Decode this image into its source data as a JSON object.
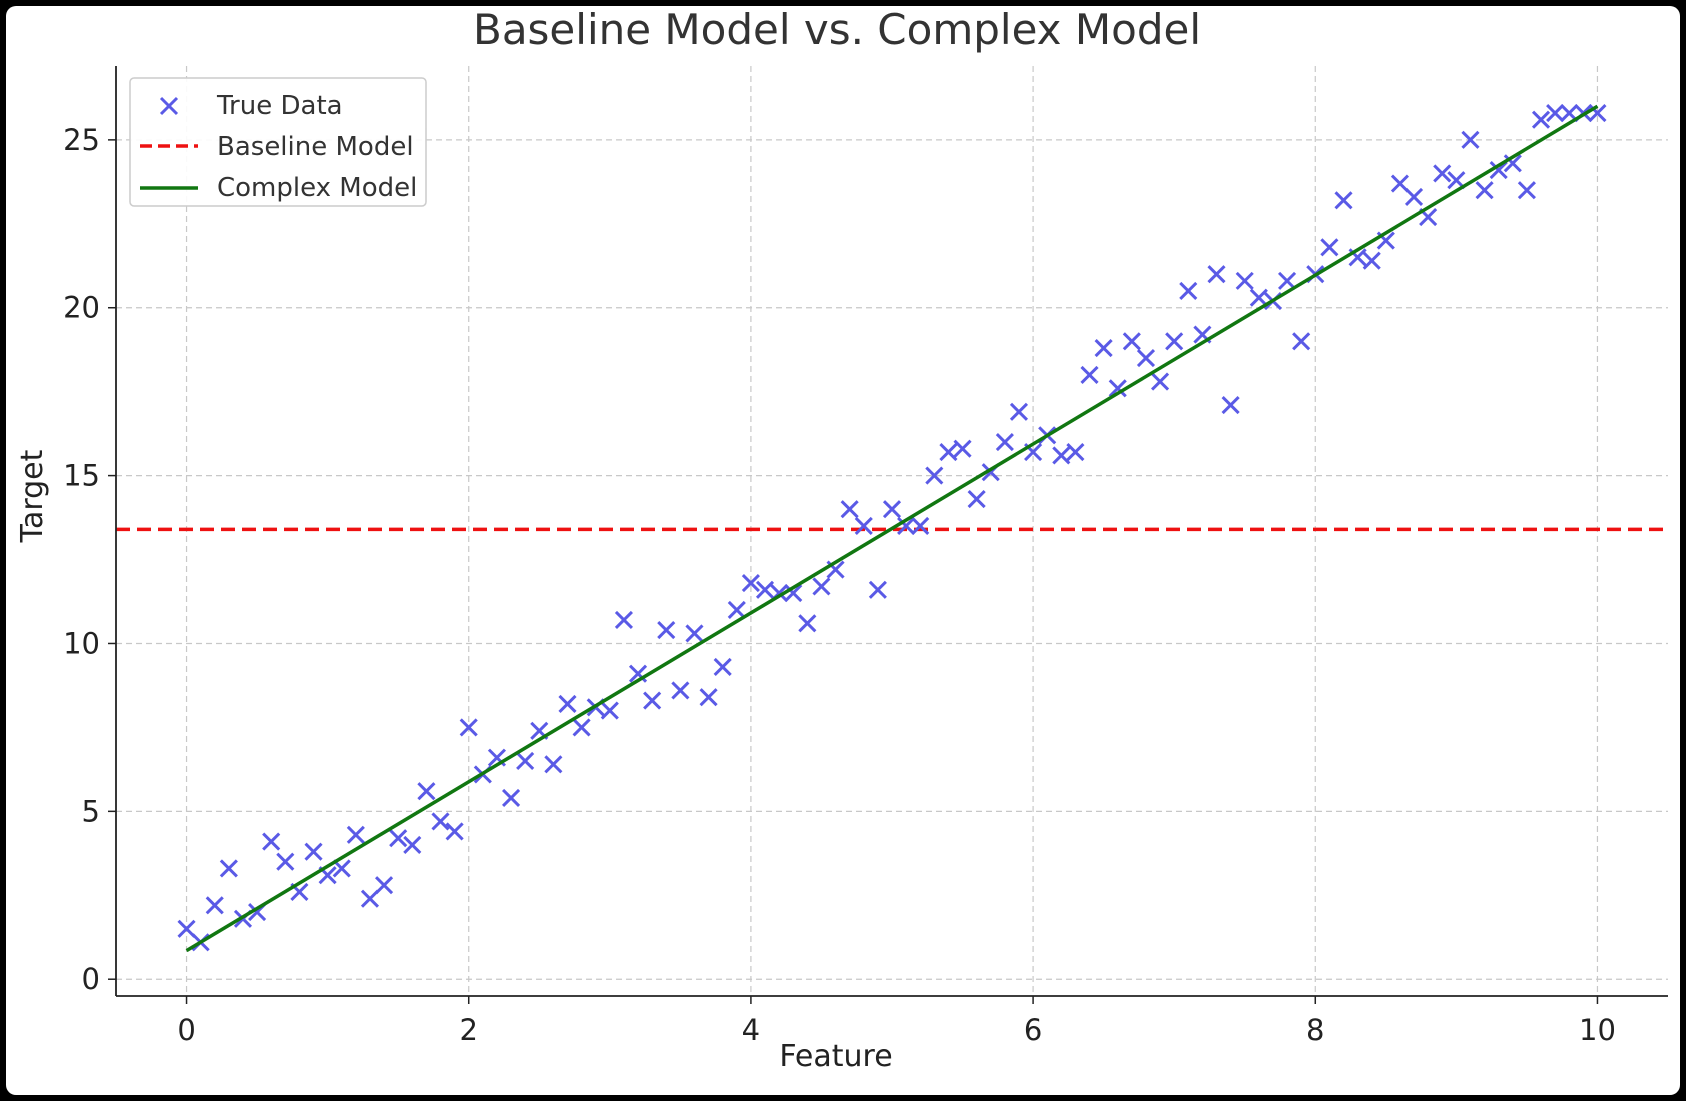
{
  "colors": {
    "true_data": "#5a5ae6",
    "baseline": "#ee1111",
    "complex": "#117711",
    "grid": "#c8c8c8",
    "axis": "#222222"
  },
  "chart_data": {
    "type": "scatter",
    "title": "Baseline Model vs. Complex Model",
    "xlabel": "Feature",
    "ylabel": "Target",
    "xlim": [
      -0.5,
      10.5
    ],
    "ylim": [
      -0.5,
      27.2
    ],
    "xticks": [
      0,
      2,
      4,
      6,
      8,
      10
    ],
    "yticks": [
      0,
      5,
      10,
      15,
      20,
      25
    ],
    "grid": true,
    "legend_position": "top-left",
    "legend": [
      "True Data",
      "Baseline Model",
      "Complex Model"
    ],
    "series": [
      {
        "name": "True Data",
        "kind": "scatter",
        "marker": "x",
        "points": [
          [
            0.0,
            1.5
          ],
          [
            0.1,
            1.1
          ],
          [
            0.2,
            2.2
          ],
          [
            0.3,
            3.3
          ],
          [
            0.4,
            1.8
          ],
          [
            0.5,
            2.0
          ],
          [
            0.6,
            4.1
          ],
          [
            0.7,
            3.5
          ],
          [
            0.8,
            2.6
          ],
          [
            0.9,
            3.8
          ],
          [
            1.0,
            3.1
          ],
          [
            1.1,
            3.3
          ],
          [
            1.2,
            4.3
          ],
          [
            1.3,
            2.4
          ],
          [
            1.4,
            2.8
          ],
          [
            1.5,
            4.2
          ],
          [
            1.6,
            4.0
          ],
          [
            1.7,
            5.6
          ],
          [
            1.8,
            4.7
          ],
          [
            1.9,
            4.4
          ],
          [
            2.0,
            7.5
          ],
          [
            2.1,
            6.1
          ],
          [
            2.2,
            6.6
          ],
          [
            2.3,
            5.4
          ],
          [
            2.4,
            6.5
          ],
          [
            2.5,
            7.4
          ],
          [
            2.6,
            6.4
          ],
          [
            2.7,
            8.2
          ],
          [
            2.8,
            7.5
          ],
          [
            2.9,
            8.1
          ],
          [
            3.0,
            8.0
          ],
          [
            3.1,
            10.7
          ],
          [
            3.2,
            9.1
          ],
          [
            3.3,
            8.3
          ],
          [
            3.4,
            10.4
          ],
          [
            3.5,
            8.6
          ],
          [
            3.6,
            10.3
          ],
          [
            3.7,
            8.4
          ],
          [
            3.8,
            9.3
          ],
          [
            3.9,
            11.0
          ],
          [
            4.0,
            11.8
          ],
          [
            4.1,
            11.6
          ],
          [
            4.2,
            11.5
          ],
          [
            4.3,
            11.5
          ],
          [
            4.4,
            10.6
          ],
          [
            4.5,
            11.7
          ],
          [
            4.6,
            12.2
          ],
          [
            4.7,
            14.0
          ],
          [
            4.8,
            13.5
          ],
          [
            4.9,
            11.6
          ],
          [
            5.0,
            14.0
          ],
          [
            5.1,
            13.5
          ],
          [
            5.2,
            13.5
          ],
          [
            5.3,
            15.0
          ],
          [
            5.4,
            15.7
          ],
          [
            5.5,
            15.8
          ],
          [
            5.6,
            14.3
          ],
          [
            5.7,
            15.1
          ],
          [
            5.8,
            16.0
          ],
          [
            5.9,
            16.9
          ],
          [
            6.0,
            15.7
          ],
          [
            6.1,
            16.2
          ],
          [
            6.2,
            15.6
          ],
          [
            6.3,
            15.7
          ],
          [
            6.4,
            18.0
          ],
          [
            6.5,
            18.8
          ],
          [
            6.6,
            17.6
          ],
          [
            6.7,
            19.0
          ],
          [
            6.8,
            18.5
          ],
          [
            6.9,
            17.8
          ],
          [
            7.0,
            19.0
          ],
          [
            7.1,
            20.5
          ],
          [
            7.2,
            19.2
          ],
          [
            7.3,
            21.0
          ],
          [
            7.4,
            17.1
          ],
          [
            7.5,
            20.8
          ],
          [
            7.6,
            20.3
          ],
          [
            7.7,
            20.2
          ],
          [
            7.8,
            20.8
          ],
          [
            7.9,
            19.0
          ],
          [
            8.0,
            21.0
          ],
          [
            8.1,
            21.8
          ],
          [
            8.2,
            23.2
          ],
          [
            8.3,
            21.5
          ],
          [
            8.4,
            21.4
          ],
          [
            8.5,
            22.0
          ],
          [
            8.6,
            23.7
          ],
          [
            8.7,
            23.3
          ],
          [
            8.8,
            22.7
          ],
          [
            8.9,
            24.0
          ],
          [
            9.0,
            23.8
          ],
          [
            9.1,
            25.0
          ],
          [
            9.2,
            23.5
          ],
          [
            9.3,
            24.1
          ],
          [
            9.4,
            24.3
          ],
          [
            9.5,
            23.5
          ],
          [
            9.6,
            25.6
          ],
          [
            9.7,
            25.8
          ],
          [
            9.8,
            25.8
          ],
          [
            9.9,
            25.8
          ],
          [
            10.0,
            25.8
          ]
        ]
      },
      {
        "name": "Baseline Model",
        "kind": "hline",
        "y": 13.4,
        "style": "dashed"
      },
      {
        "name": "Complex Model",
        "kind": "line",
        "points": [
          [
            0.0,
            0.85
          ],
          [
            10.0,
            26.0
          ]
        ]
      }
    ]
  }
}
